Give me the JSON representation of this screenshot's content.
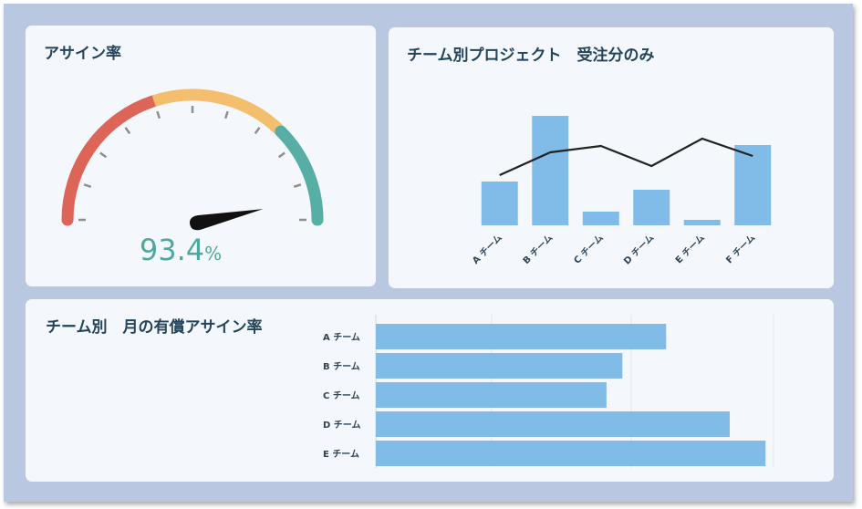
{
  "gauge_card": {
    "title": "アサイン率",
    "value_number": "93.4",
    "value_unit": "%",
    "value": 93.4,
    "scale_min": 0,
    "scale_max": 100,
    "band_colors": [
      "#dc6558",
      "#f3be6e",
      "#56aea5"
    ]
  },
  "project_card": {
    "title": "チーム別プロジェクト　受注分のみ"
  },
  "team_card": {
    "title": "チーム別　月の有償アサイン率"
  },
  "chart_data": [
    {
      "type": "bar",
      "title": "チーム別プロジェクト　受注分のみ",
      "categories": [
        "A チーム",
        "B チーム",
        "C チーム",
        "D チーム",
        "E チーム",
        "F チーム"
      ],
      "series": [
        {
          "type": "bar",
          "values": [
            48,
            120,
            15,
            39,
            6,
            88
          ],
          "color": "#81bce9"
        },
        {
          "type": "line",
          "values": [
            55,
            80,
            87,
            65,
            95,
            76
          ],
          "color": "#222222"
        }
      ],
      "ylim": [
        0,
        125
      ],
      "grid": false,
      "legend": false
    },
    {
      "type": "bar",
      "orientation": "horizontal",
      "title": "チーム別　月の有償アサイン率",
      "categories": [
        "A チーム",
        "B チーム",
        "C チーム",
        "D チーム",
        "E チーム"
      ],
      "values": [
        73,
        62,
        58,
        89,
        98
      ],
      "xlim": [
        0,
        100
      ],
      "grid": true,
      "color": "#81bce9"
    }
  ]
}
